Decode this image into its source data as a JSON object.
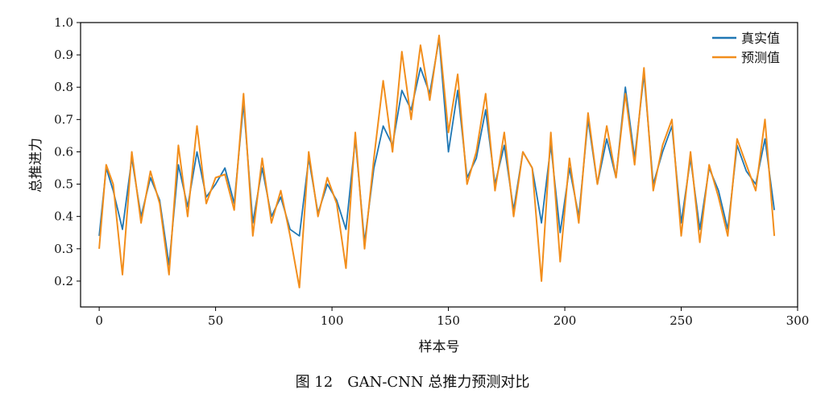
{
  "chart_data": {
    "type": "line",
    "caption": "图 12　GAN-CNN 总推力预测对比",
    "xlabel": "样本号",
    "ylabel": "总推进力",
    "xlim": [
      -8,
      300
    ],
    "ylim": [
      0.12,
      1.0
    ],
    "xticks": [
      0,
      50,
      100,
      150,
      200,
      250,
      300
    ],
    "yticks": [
      0.2,
      0.3,
      0.4,
      0.5,
      0.6,
      0.7,
      0.8,
      0.9,
      1.0
    ],
    "xtick_labels": [
      "0",
      "50",
      "100",
      "150",
      "200",
      "250",
      "300"
    ],
    "ytick_labels": [
      "0.2",
      "0.3",
      "0.4",
      "0.5",
      "0.6",
      "0.7",
      "0.8",
      "0.9",
      "1.0"
    ],
    "legend": {
      "position": "top-right",
      "entries": [
        "真实值",
        "预测值"
      ]
    },
    "series": [
      {
        "name": "真实值",
        "color": "#1f77b4",
        "x": [
          0,
          3,
          6,
          10,
          14,
          18,
          22,
          26,
          30,
          34,
          38,
          42,
          46,
          50,
          54,
          58,
          62,
          66,
          70,
          74,
          78,
          82,
          86,
          90,
          94,
          98,
          102,
          106,
          110,
          114,
          118,
          122,
          126,
          130,
          134,
          138,
          142,
          146,
          150,
          154,
          158,
          162,
          166,
          170,
          174,
          178,
          182,
          186,
          190,
          194,
          198,
          202,
          206,
          210,
          214,
          218,
          222,
          226,
          230,
          234,
          238,
          242,
          246,
          250,
          254,
          258,
          262,
          266,
          270,
          274,
          278,
          282,
          286,
          290
        ],
        "values": [
          0.34,
          0.55,
          0.48,
          0.36,
          0.58,
          0.4,
          0.52,
          0.45,
          0.25,
          0.56,
          0.43,
          0.6,
          0.46,
          0.5,
          0.55,
          0.44,
          0.75,
          0.38,
          0.55,
          0.4,
          0.46,
          0.36,
          0.34,
          0.58,
          0.41,
          0.5,
          0.45,
          0.36,
          0.64,
          0.32,
          0.55,
          0.68,
          0.62,
          0.79,
          0.73,
          0.86,
          0.78,
          0.95,
          0.6,
          0.79,
          0.52,
          0.58,
          0.73,
          0.5,
          0.62,
          0.42,
          0.6,
          0.55,
          0.38,
          0.62,
          0.35,
          0.55,
          0.4,
          0.7,
          0.5,
          0.64,
          0.52,
          0.8,
          0.58,
          0.84,
          0.5,
          0.6,
          0.68,
          0.38,
          0.58,
          0.36,
          0.55,
          0.48,
          0.36,
          0.62,
          0.54,
          0.5,
          0.64,
          0.42
        ]
      },
      {
        "name": "预测值",
        "color": "#f28e1c",
        "x": [
          0,
          3,
          6,
          10,
          14,
          18,
          22,
          26,
          30,
          34,
          38,
          42,
          46,
          50,
          54,
          58,
          62,
          66,
          70,
          74,
          78,
          82,
          86,
          90,
          94,
          98,
          102,
          106,
          110,
          114,
          118,
          122,
          126,
          130,
          134,
          138,
          142,
          146,
          150,
          154,
          158,
          162,
          166,
          170,
          174,
          178,
          182,
          186,
          190,
          194,
          198,
          202,
          206,
          210,
          214,
          218,
          222,
          226,
          230,
          234,
          238,
          242,
          246,
          250,
          254,
          258,
          262,
          266,
          270,
          274,
          278,
          282,
          286,
          290
        ],
        "values": [
          0.3,
          0.56,
          0.5,
          0.22,
          0.6,
          0.38,
          0.54,
          0.44,
          0.22,
          0.62,
          0.4,
          0.68,
          0.44,
          0.52,
          0.53,
          0.42,
          0.78,
          0.34,
          0.58,
          0.38,
          0.48,
          0.34,
          0.18,
          0.6,
          0.4,
          0.52,
          0.44,
          0.24,
          0.66,
          0.3,
          0.58,
          0.82,
          0.6,
          0.91,
          0.7,
          0.93,
          0.76,
          0.96,
          0.66,
          0.84,
          0.5,
          0.6,
          0.78,
          0.48,
          0.66,
          0.4,
          0.6,
          0.55,
          0.2,
          0.66,
          0.26,
          0.58,
          0.38,
          0.72,
          0.5,
          0.68,
          0.52,
          0.78,
          0.56,
          0.86,
          0.48,
          0.62,
          0.7,
          0.34,
          0.6,
          0.32,
          0.56,
          0.46,
          0.34,
          0.64,
          0.56,
          0.48,
          0.7,
          0.34
        ]
      }
    ]
  }
}
